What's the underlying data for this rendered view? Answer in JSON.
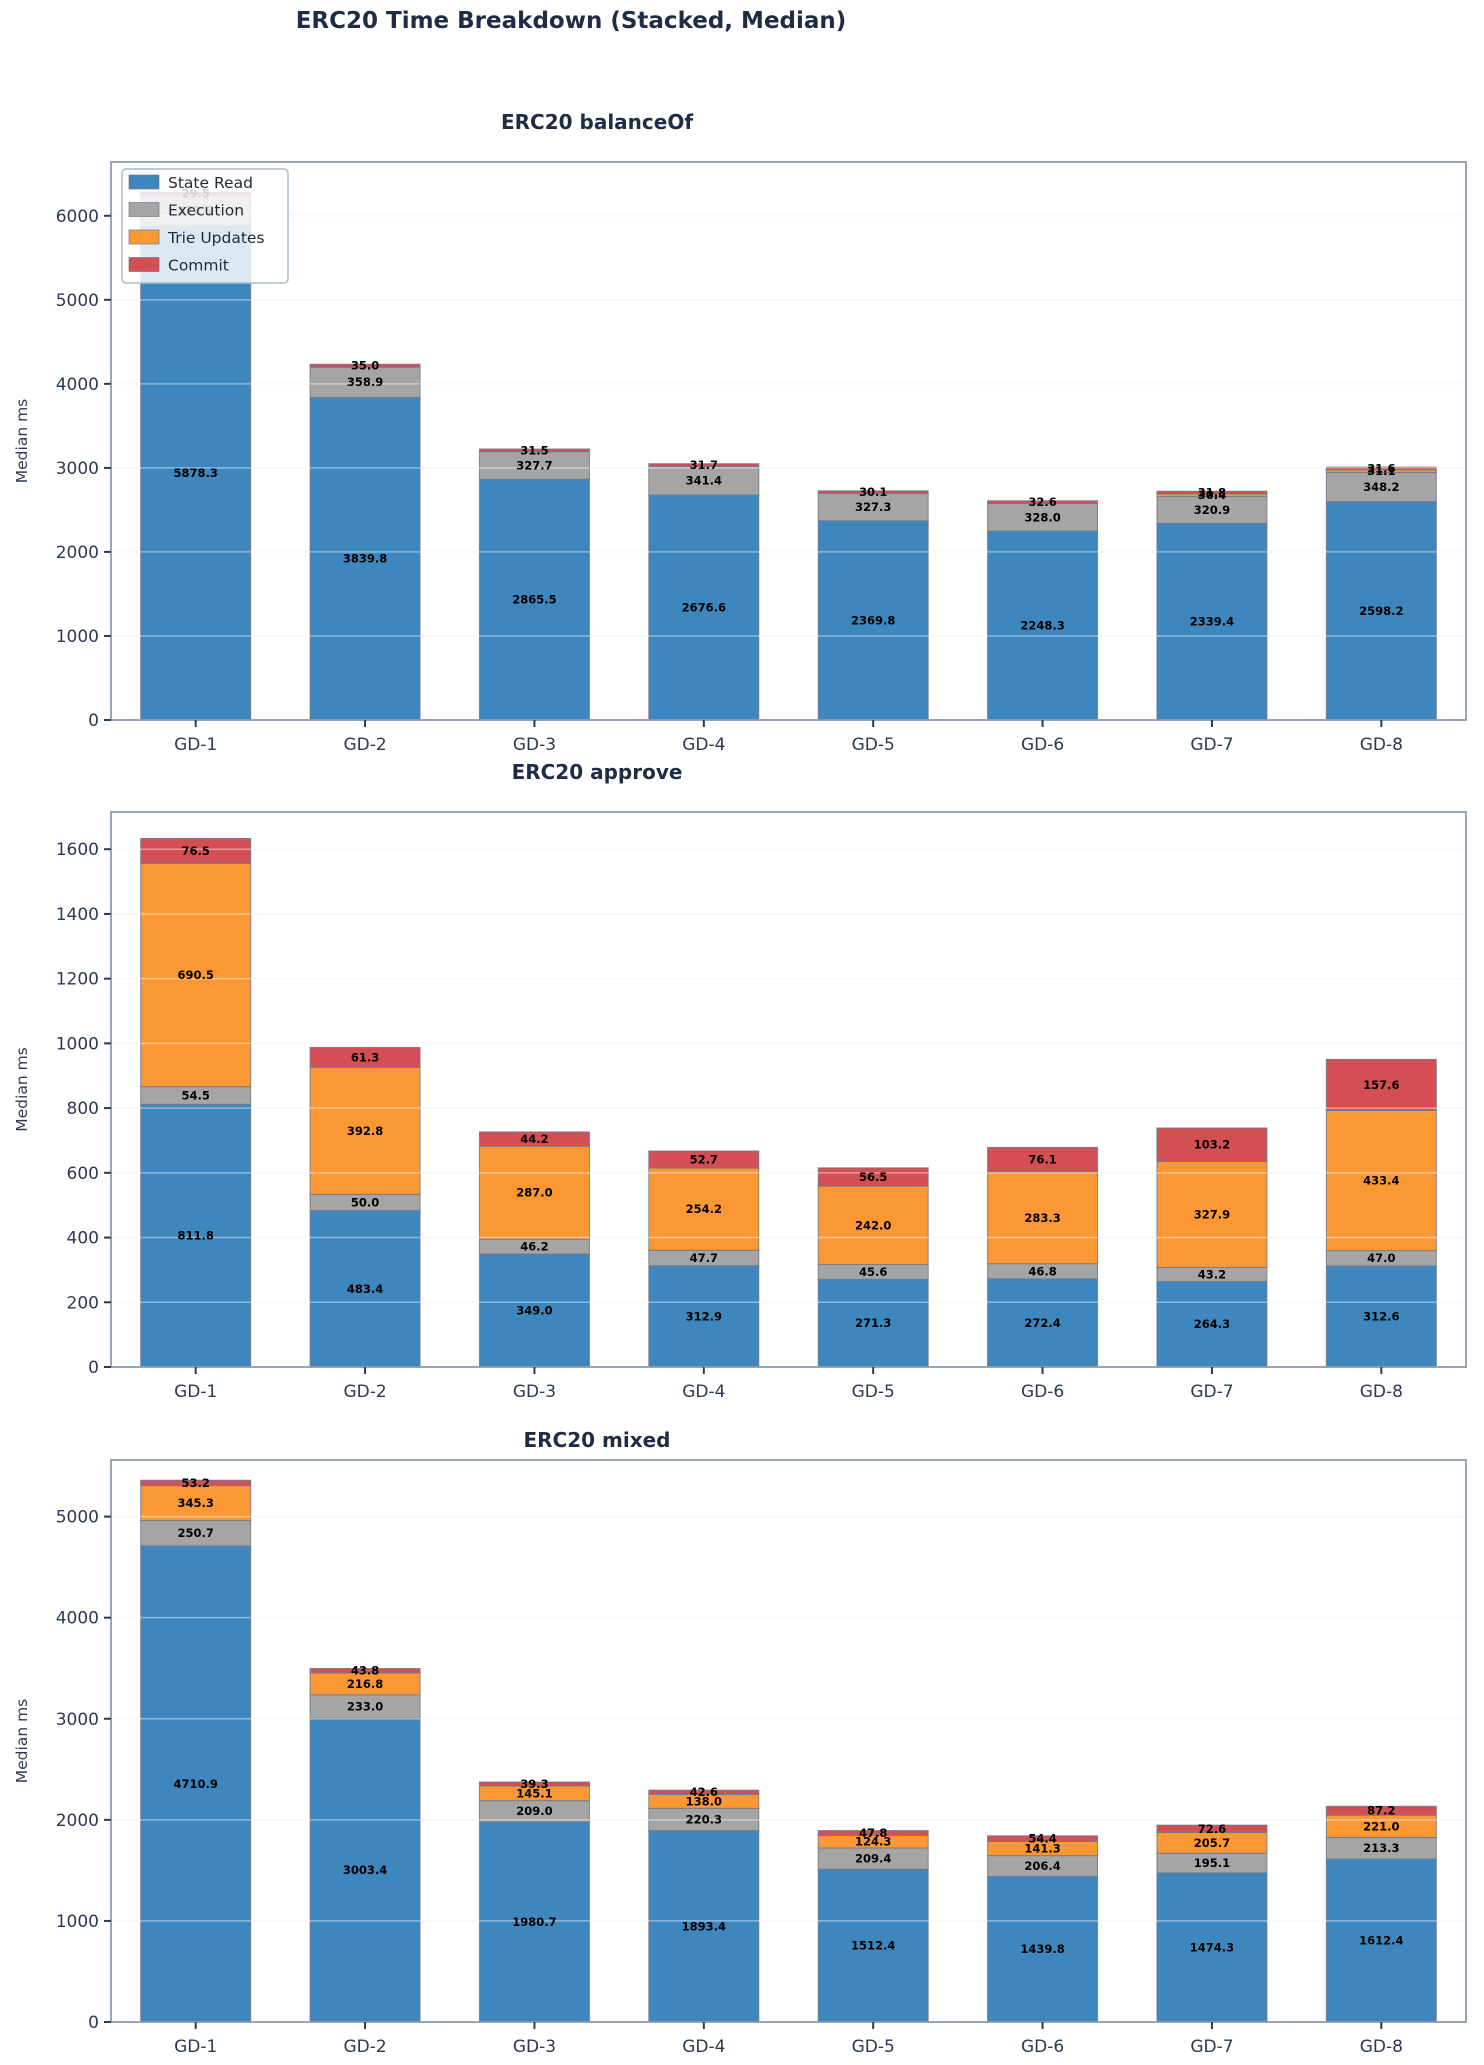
{
  "suptitle": "ERC20 Time Breakdown (Stacked, Median)",
  "ylabel": "Median ms",
  "categories": [
    "GD-1",
    "GD-2",
    "GD-3",
    "GD-4",
    "GD-5",
    "GD-6",
    "GD-7",
    "GD-8"
  ],
  "legend": {
    "entries": [
      "State Read",
      "Execution",
      "Trie Updates",
      "Commit"
    ],
    "position": "upper left",
    "shown_on": "ERC20 balanceOf"
  },
  "colors": {
    "state_read": "#3D87BE",
    "execution": "#A5A5A5",
    "trie_updates": "#FB9834",
    "commit": "#D44F53",
    "bar_edge": "rgba(110,120,140,0.85)",
    "grid": "#F3F4F7",
    "overgrid": "rgba(255,255,255,0.42)",
    "spine": "#8D9CB1",
    "tick_text": "#2B3A52",
    "title_text": "#1E2D44",
    "value_label": "#000000",
    "legend_border": "#A9BACF",
    "legend_bg": "rgba(255,255,255,0.82)"
  },
  "chart_data": [
    {
      "type": "bar",
      "stacked": true,
      "title": "ERC20 balanceOf",
      "ylabel": "Median ms",
      "grid": true,
      "show_legend": true,
      "categories": [
        "GD-1",
        "GD-2",
        "GD-3",
        "GD-4",
        "GD-5",
        "GD-6",
        "GD-7",
        "GD-8"
      ],
      "ylim": [
        0,
        6640
      ],
      "ytick_step": 1000,
      "series": [
        {
          "name": "State Read",
          "color_key": "state_read",
          "values": [
            5878.3,
            3839.8,
            2865.5,
            2676.6,
            2369.8,
            2248.3,
            2339.4,
            2598.2
          ]
        },
        {
          "name": "Execution",
          "color_key": "execution",
          "values": [
            372.7,
            358.9,
            327.7,
            341.4,
            327.3,
            328.0,
            320.9,
            348.2
          ]
        },
        {
          "name": "Trie Updates",
          "color_key": "trie_updates",
          "values": [
            0,
            0,
            0,
            0,
            0,
            0,
            30.4,
            31.1
          ]
        },
        {
          "name": "Commit",
          "color_key": "commit",
          "values": [
            29.5,
            35.0,
            31.5,
            31.7,
            30.1,
            32.6,
            31.8,
            31.6
          ]
        }
      ]
    },
    {
      "type": "bar",
      "stacked": true,
      "title": "ERC20 approve",
      "ylabel": "Median ms",
      "grid": true,
      "show_legend": false,
      "categories": [
        "GD-1",
        "GD-2",
        "GD-3",
        "GD-4",
        "GD-5",
        "GD-6",
        "GD-7",
        "GD-8"
      ],
      "ylim": [
        0,
        1715
      ],
      "ytick_step": 200,
      "series": [
        {
          "name": "State Read",
          "color_key": "state_read",
          "values": [
            811.8,
            483.4,
            349.0,
            312.9,
            271.3,
            272.4,
            264.3,
            312.6
          ]
        },
        {
          "name": "Execution",
          "color_key": "execution",
          "values": [
            54.5,
            50.0,
            46.2,
            47.7,
            45.6,
            46.8,
            43.2,
            47.0
          ]
        },
        {
          "name": "Trie Updates",
          "color_key": "trie_updates",
          "values": [
            690.5,
            392.8,
            287.0,
            254.2,
            242.0,
            283.3,
            327.9,
            433.4
          ]
        },
        {
          "name": "Commit",
          "color_key": "commit",
          "values": [
            76.5,
            61.3,
            44.2,
            52.7,
            56.5,
            76.1,
            103.2,
            157.6
          ]
        }
      ]
    },
    {
      "type": "bar",
      "stacked": true,
      "title": "ERC20 mixed",
      "ylabel": "Median ms",
      "grid": true,
      "show_legend": false,
      "categories": [
        "GD-1",
        "GD-2",
        "GD-3",
        "GD-4",
        "GD-5",
        "GD-6",
        "GD-7",
        "GD-8"
      ],
      "ylim": [
        0,
        5560
      ],
      "ytick_step": 1000,
      "series": [
        {
          "name": "State Read",
          "color_key": "state_read",
          "values": [
            4710.9,
            3003.4,
            1980.7,
            1893.4,
            1512.4,
            1439.8,
            1474.3,
            1612.4
          ]
        },
        {
          "name": "Execution",
          "color_key": "execution",
          "values": [
            250.7,
            233.0,
            209.0,
            220.3,
            209.4,
            206.4,
            195.1,
            213.3
          ]
        },
        {
          "name": "Trie Updates",
          "color_key": "trie_updates",
          "values": [
            345.3,
            216.8,
            145.1,
            138.0,
            124.3,
            141.3,
            205.7,
            221.0
          ]
        },
        {
          "name": "Commit",
          "color_key": "commit",
          "values": [
            53.2,
            43.8,
            39.3,
            42.6,
            47.8,
            54.4,
            72.6,
            87.2
          ]
        }
      ]
    }
  ]
}
